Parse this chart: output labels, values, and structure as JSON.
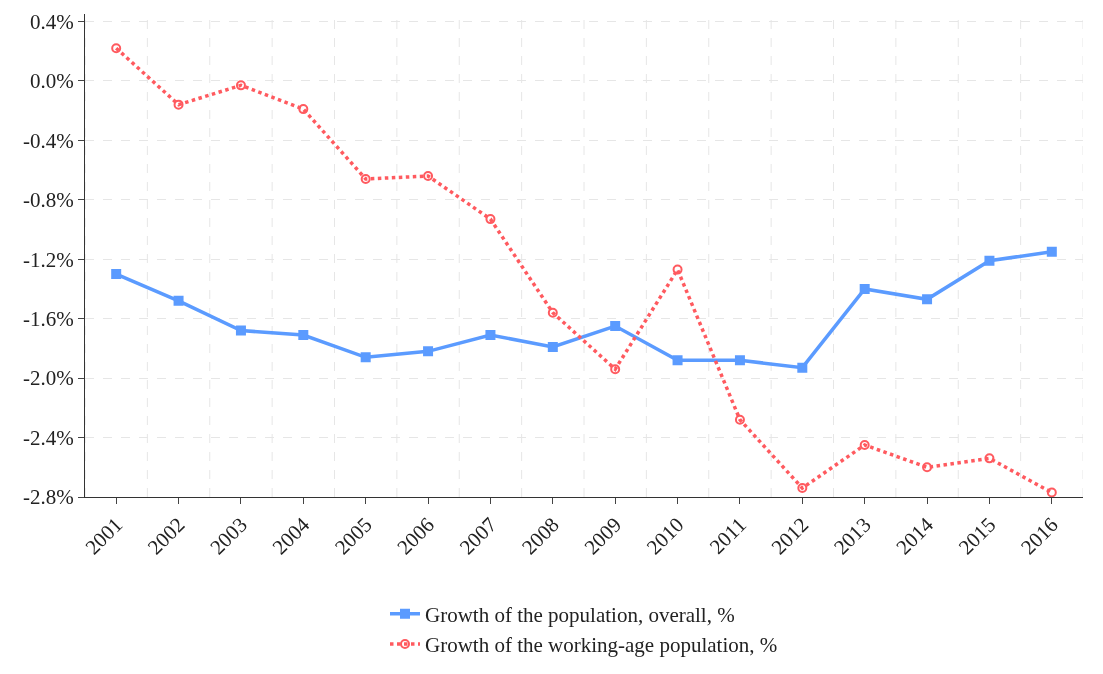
{
  "chart_data": {
    "type": "line",
    "categories": [
      "2001",
      "2002",
      "2003",
      "2004",
      "2005",
      "2006",
      "2007",
      "2008",
      "2009",
      "2010",
      "2011",
      "2012",
      "2013",
      "2014",
      "2015",
      "2016"
    ],
    "series": [
      {
        "name": "Growth of the population, overall, %",
        "color": "#5b9bff",
        "marker": "square",
        "line_style": "solid",
        "values": [
          -1.3,
          -1.48,
          -1.68,
          -1.71,
          -1.86,
          -1.82,
          -1.71,
          -1.79,
          -1.65,
          -1.88,
          -1.88,
          -1.93,
          -1.4,
          -1.47,
          -1.21,
          -1.15
        ]
      },
      {
        "name": "Growth of the working-age population, %",
        "color": "#ff5a5f",
        "marker": "circle",
        "line_style": "dotted",
        "values": [
          0.22,
          -0.16,
          -0.03,
          -0.19,
          -0.66,
          -0.64,
          -0.93,
          -1.56,
          -1.94,
          -1.27,
          -2.28,
          -2.74,
          -2.45,
          -2.6,
          -2.54,
          -2.77
        ]
      }
    ],
    "ylim": [
      -2.8,
      0.45
    ],
    "yticks": [
      {
        "value": 0.4,
        "label": "0.4%"
      },
      {
        "value": 0,
        "label": "0.0%"
      },
      {
        "value": -0.4,
        "label": "-0.4%"
      },
      {
        "value": -0.8,
        "label": "-0.8%"
      },
      {
        "value": -1.2,
        "label": "-1.2%"
      },
      {
        "value": -1.6,
        "label": "-1.6%"
      },
      {
        "value": -2.0,
        "label": "-2.0%"
      },
      {
        "value": -2.4,
        "label": "-2.4%"
      },
      {
        "value": -2.8,
        "label": "-2.8%"
      }
    ],
    "grid": true,
    "legend": "bottom"
  }
}
